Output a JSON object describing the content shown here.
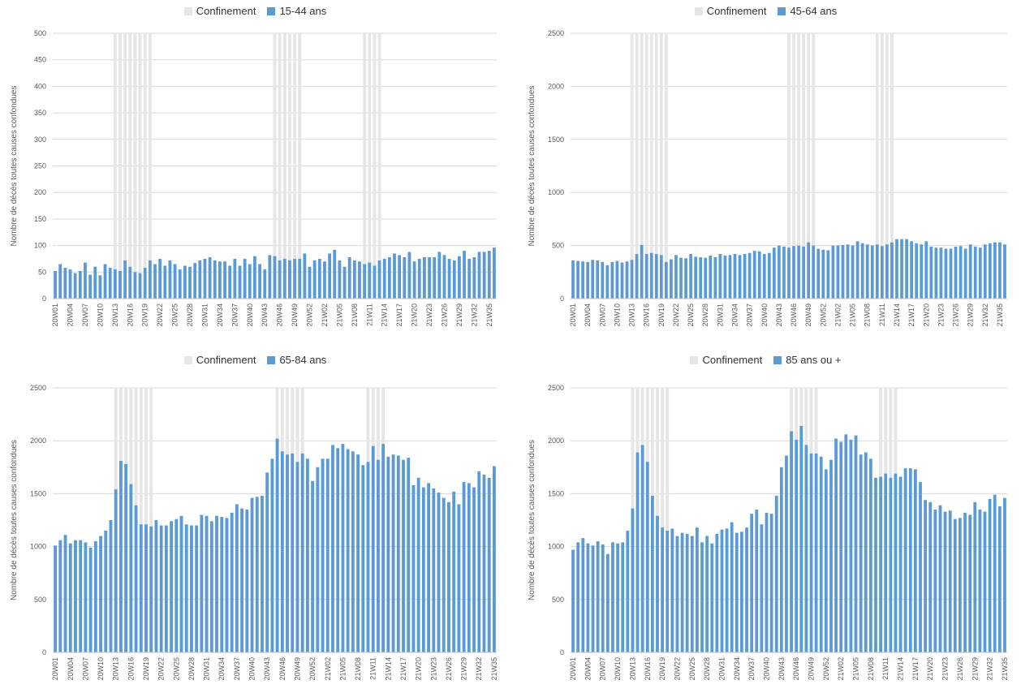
{
  "chart_data": [
    {
      "type": "bar",
      "ylabel": "Nombre de décès toutes causes confondues",
      "ylim": [
        0,
        500
      ],
      "yticks": [
        0,
        50,
        100,
        150,
        200,
        250,
        300,
        350,
        400,
        450,
        500
      ],
      "legend": "top-center",
      "grid": true,
      "series": [
        {
          "name": "Confinement",
          "color": "#e6e6e6",
          "type": "bar",
          "values_note": "full height during lockdown weeks"
        },
        {
          "name": "15-44 ans",
          "color": "#5b9bd5",
          "values": [
            52,
            65,
            58,
            55,
            48,
            52,
            68,
            45,
            60,
            44,
            65,
            58,
            55,
            52,
            72,
            60,
            50,
            48,
            58,
            72,
            65,
            75,
            62,
            72,
            65,
            55,
            62,
            60,
            67,
            72,
            75,
            78,
            72,
            70,
            70,
            62,
            75,
            62,
            75,
            65,
            80,
            65,
            55,
            82,
            80,
            72,
            75,
            72,
            75,
            75,
            85,
            60,
            72,
            75,
            70,
            85,
            92,
            72,
            60,
            78,
            72,
            70,
            65,
            68,
            62,
            72,
            75,
            78,
            85,
            82,
            78,
            88,
            70,
            75,
            78,
            78,
            78,
            88,
            82,
            75,
            72,
            80,
            90,
            75,
            78,
            88,
            88,
            90,
            96
          ]
        }
      ],
      "lockdown_weeks": [
        12,
        13,
        14,
        15,
        16,
        17,
        18,
        19,
        44,
        45,
        46,
        47,
        48,
        49,
        62,
        63,
        64,
        65
      ],
      "tick_labels": [
        "20W01",
        "20W04",
        "20W07",
        "20W10",
        "20W13",
        "20W16",
        "20W19",
        "20W22",
        "20W25",
        "20W28",
        "20W31",
        "20W34",
        "20W37",
        "20W40",
        "20W43",
        "20W46",
        "20W49",
        "20W52",
        "21W02",
        "21W05",
        "21W08",
        "21W11",
        "21W14",
        "21W17",
        "21W20",
        "21W23",
        "21W26",
        "21W29",
        "21W32",
        "21W35"
      ],
      "legend_items": [
        "Confinement",
        "15-44 ans"
      ]
    },
    {
      "type": "bar",
      "ylabel": "Nombre de décès toutes causes confondues",
      "ylim": [
        0,
        2500
      ],
      "yticks": [
        0,
        500,
        1000,
        1500,
        2000,
        2500
      ],
      "legend": "top-center",
      "grid": true,
      "series": [
        {
          "name": "Confinement",
          "color": "#e6e6e6"
        },
        {
          "name": "45-64 ans",
          "color": "#5b9bd5",
          "values": [
            360,
            355,
            350,
            345,
            365,
            360,
            345,
            315,
            345,
            355,
            340,
            350,
            365,
            420,
            505,
            420,
            430,
            420,
            410,
            345,
            370,
            410,
            385,
            380,
            420,
            395,
            390,
            385,
            405,
            390,
            420,
            405,
            410,
            420,
            410,
            420,
            430,
            450,
            445,
            420,
            430,
            480,
            500,
            490,
            480,
            495,
            500,
            490,
            530,
            500,
            470,
            460,
            455,
            500,
            500,
            505,
            510,
            500,
            540,
            520,
            510,
            500,
            510,
            495,
            510,
            530,
            560,
            560,
            560,
            540,
            520,
            510,
            540,
            490,
            480,
            480,
            470,
            470,
            490,
            495,
            470,
            510,
            490,
            480,
            510,
            520,
            530,
            530,
            510
          ]
        }
      ],
      "lockdown_weeks": [
        12,
        13,
        14,
        15,
        16,
        17,
        18,
        19,
        44,
        45,
        46,
        47,
        48,
        49,
        62,
        63,
        64,
        65
      ],
      "tick_labels": [
        "20W01",
        "20W04",
        "20W07",
        "20W10",
        "20W13",
        "20W16",
        "20W19",
        "20W22",
        "20W25",
        "20W28",
        "20W31",
        "20W34",
        "20W37",
        "20W40",
        "20W43",
        "20W46",
        "20W49",
        "20W52",
        "21W02",
        "21W05",
        "21W08",
        "21W11",
        "21W14",
        "21W17",
        "21W20",
        "21W23",
        "21W26",
        "21W29",
        "21W32",
        "21W35"
      ],
      "legend_items": [
        "Confinement",
        "45-64 ans"
      ]
    },
    {
      "type": "bar",
      "ylabel": "Nombre de décès toutes causes confondues",
      "ylim": [
        0,
        2500
      ],
      "yticks": [
        0,
        500,
        1000,
        1500,
        2000,
        2500
      ],
      "legend": "top-center",
      "grid": true,
      "series": [
        {
          "name": "Confinement",
          "color": "#e6e6e6"
        },
        {
          "name": "65-84 ans",
          "color": "#5b9bd5",
          "values": [
            1010,
            1060,
            1110,
            1030,
            1060,
            1060,
            1040,
            990,
            1050,
            1100,
            1150,
            1250,
            1540,
            1810,
            1780,
            1590,
            1390,
            1210,
            1210,
            1190,
            1250,
            1200,
            1200,
            1240,
            1260,
            1290,
            1210,
            1200,
            1200,
            1300,
            1290,
            1240,
            1290,
            1280,
            1270,
            1320,
            1400,
            1360,
            1350,
            1460,
            1470,
            1480,
            1700,
            1830,
            2020,
            1900,
            1870,
            1880,
            1800,
            1880,
            1830,
            1620,
            1750,
            1830,
            1830,
            1960,
            1930,
            1970,
            1920,
            1900,
            1870,
            1770,
            1800,
            1950,
            1820,
            1970,
            1850,
            1870,
            1860,
            1820,
            1840,
            1580,
            1650,
            1560,
            1600,
            1550,
            1510,
            1460,
            1420,
            1520,
            1400,
            1610,
            1600,
            1560,
            1710,
            1680,
            1650,
            1760
          ]
        }
      ],
      "lockdown_weeks": [
        12,
        13,
        14,
        15,
        16,
        17,
        18,
        19,
        44,
        45,
        46,
        47,
        48,
        49,
        62,
        63,
        64,
        65
      ],
      "tick_labels": [
        "20W01",
        "20W04",
        "20W07",
        "20W10",
        "20W13",
        "20W16",
        "20W19",
        "20W22",
        "20W25",
        "20W28",
        "20W31",
        "20W34",
        "20W37",
        "20W40",
        "20W43",
        "20W46",
        "20W49",
        "20W52",
        "21W02",
        "21W05",
        "21W08",
        "21W11",
        "21W14",
        "21W17",
        "21W20",
        "21W23",
        "21W26",
        "21W29",
        "21W32",
        "21W35"
      ],
      "legend_items": [
        "Confinement",
        "65-84 ans"
      ]
    },
    {
      "type": "bar",
      "ylabel": "Nombre de décès toutes causes confondues",
      "ylim": [
        0,
        2500
      ],
      "yticks": [
        0,
        500,
        1000,
        1500,
        2000,
        2500
      ],
      "legend": "top-center",
      "grid": true,
      "series": [
        {
          "name": "Confinement",
          "color": "#e6e6e6"
        },
        {
          "name": "85 ans ou +",
          "color": "#5b9bd5",
          "values": [
            970,
            1040,
            1080,
            1030,
            1010,
            1050,
            1020,
            930,
            1040,
            1030,
            1040,
            1150,
            1360,
            1890,
            1960,
            1800,
            1480,
            1290,
            1180,
            1150,
            1170,
            1100,
            1130,
            1120,
            1100,
            1180,
            1040,
            1100,
            1030,
            1120,
            1160,
            1170,
            1230,
            1130,
            1140,
            1180,
            1310,
            1350,
            1210,
            1320,
            1310,
            1480,
            1750,
            1860,
            2090,
            2010,
            2140,
            1960,
            1880,
            1880,
            1850,
            1730,
            1820,
            2020,
            1990,
            2060,
            2010,
            2050,
            1870,
            1890,
            1830,
            1650,
            1660,
            1690,
            1650,
            1690,
            1660,
            1740,
            1740,
            1730,
            1610,
            1440,
            1420,
            1350,
            1390,
            1330,
            1340,
            1260,
            1270,
            1320,
            1300,
            1420,
            1350,
            1330,
            1450,
            1490,
            1380,
            1460
          ]
        }
      ],
      "lockdown_weeks": [
        12,
        13,
        14,
        15,
        16,
        17,
        18,
        19,
        44,
        45,
        46,
        47,
        48,
        49,
        62,
        63,
        64,
        65
      ],
      "tick_labels": [
        "20W01",
        "20W04",
        "20W07",
        "20W10",
        "20W13",
        "20W16",
        "20W19",
        "20W22",
        "20W25",
        "20W28",
        "20W31",
        "20W34",
        "20W37",
        "20W40",
        "20W43",
        "20W46",
        "20W49",
        "20W52",
        "21W02",
        "21W05",
        "21W08",
        "21W11",
        "21W14",
        "21W17",
        "21W20",
        "21W23",
        "21W26",
        "21W29",
        "21W32",
        "21W35"
      ],
      "legend_items": [
        "Confinement",
        "85 ans ou +"
      ]
    }
  ]
}
